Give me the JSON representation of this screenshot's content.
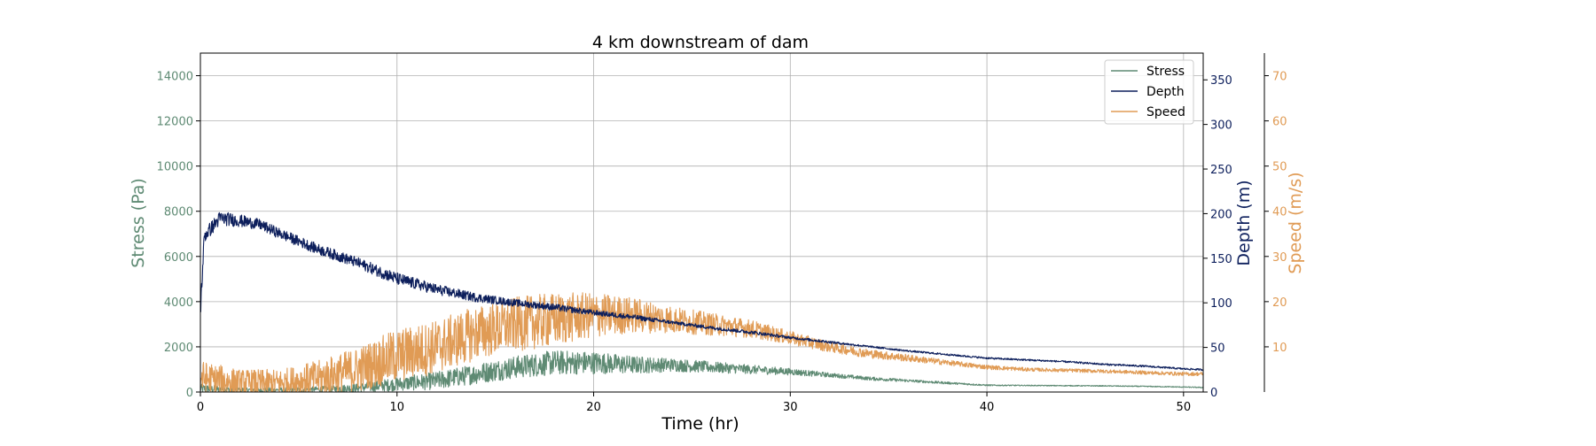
{
  "chart_data": {
    "type": "line",
    "title": "4 km downstream of dam",
    "xlabel": "Time (hr)",
    "xlim": [
      0,
      51
    ],
    "xticks": [
      0,
      10,
      20,
      30,
      40,
      50
    ],
    "grid": true,
    "legend_position": "top-right",
    "axes": {
      "stress": {
        "label": "Stress (Pa)",
        "color": "#5e8a73",
        "ylim": [
          0,
          15000
        ],
        "ticks": [
          0,
          2000,
          4000,
          6000,
          8000,
          10000,
          12000,
          14000
        ]
      },
      "depth": {
        "label": "Depth (m)",
        "color": "#0d1f5c",
        "ylim": [
          0,
          380
        ],
        "ticks": [
          0,
          50,
          100,
          150,
          200,
          250,
          300,
          350
        ]
      },
      "speed": {
        "label": "Speed (m/s)",
        "color": "#e09b55",
        "ylim": [
          0,
          75
        ],
        "ticks": [
          10,
          20,
          30,
          40,
          50,
          60,
          70
        ]
      }
    },
    "series": [
      {
        "name": "Stress",
        "axis": "stress",
        "color": "#5e8a73",
        "x": [
          0,
          2,
          4,
          6,
          8,
          10,
          12,
          14,
          16,
          18,
          20,
          22,
          24,
          26,
          28,
          30,
          32,
          34,
          36,
          38,
          40,
          42,
          44,
          46,
          48,
          50,
          51
        ],
        "y": [
          150,
          100,
          100,
          120,
          180,
          350,
          500,
          800,
          1100,
          1300,
          1300,
          1200,
          1200,
          1100,
          1000,
          900,
          750,
          600,
          500,
          400,
          300,
          290,
          280,
          270,
          250,
          220,
          200
        ],
        "noise": [
          200,
          100,
          100,
          120,
          200,
          300,
          400,
          450,
          500,
          550,
          500,
          400,
          300,
          250,
          200,
          150,
          100,
          80,
          60,
          50,
          30,
          20,
          20,
          20,
          20,
          20,
          20
        ]
      },
      {
        "name": "Depth",
        "axis": "depth",
        "color": "#0d1f5c",
        "x": [
          0,
          0.2,
          1,
          2,
          3,
          4,
          6,
          8,
          10,
          12,
          14,
          16,
          18,
          20,
          22,
          24,
          26,
          28,
          30,
          32,
          34,
          36,
          38,
          40,
          42,
          44,
          46,
          48,
          50,
          51
        ],
        "y": [
          90,
          175,
          195,
          192,
          188,
          178,
          160,
          145,
          127,
          115,
          106,
          100,
          95,
          89,
          84,
          78,
          72,
          67,
          61,
          56,
          51,
          46,
          42,
          38,
          36,
          34,
          31,
          29,
          26,
          25
        ],
        "noise": [
          10,
          8,
          8,
          7,
          6,
          6,
          6,
          6,
          7,
          6,
          5,
          4,
          4,
          3,
          3,
          2,
          2,
          2,
          1.5,
          1.5,
          1,
          1,
          1,
          1,
          1,
          1,
          1,
          1,
          1,
          1
        ]
      },
      {
        "name": "Speed",
        "axis": "speed",
        "color": "#e09b55",
        "x": [
          0,
          2,
          4,
          6,
          8,
          10,
          12,
          14,
          16,
          18,
          20,
          22,
          24,
          26,
          28,
          30,
          32,
          34,
          36,
          38,
          40,
          42,
          44,
          46,
          48,
          50,
          51
        ],
        "y": [
          3,
          2,
          2,
          3,
          5,
          8,
          10,
          13,
          15,
          16,
          17,
          17,
          16,
          15,
          14,
          12,
          10,
          8.5,
          7.5,
          6.5,
          5.5,
          5,
          4.8,
          4.6,
          4.3,
          4,
          4
        ],
        "noise": [
          4,
          3,
          3,
          4,
          5,
          6,
          6,
          6,
          6,
          6,
          5,
          4,
          3,
          2.5,
          2,
          1.5,
          1.2,
          1,
          0.8,
          0.6,
          0.5,
          0.4,
          0.4,
          0.4,
          0.4,
          0.4,
          0.4
        ]
      }
    ]
  }
}
